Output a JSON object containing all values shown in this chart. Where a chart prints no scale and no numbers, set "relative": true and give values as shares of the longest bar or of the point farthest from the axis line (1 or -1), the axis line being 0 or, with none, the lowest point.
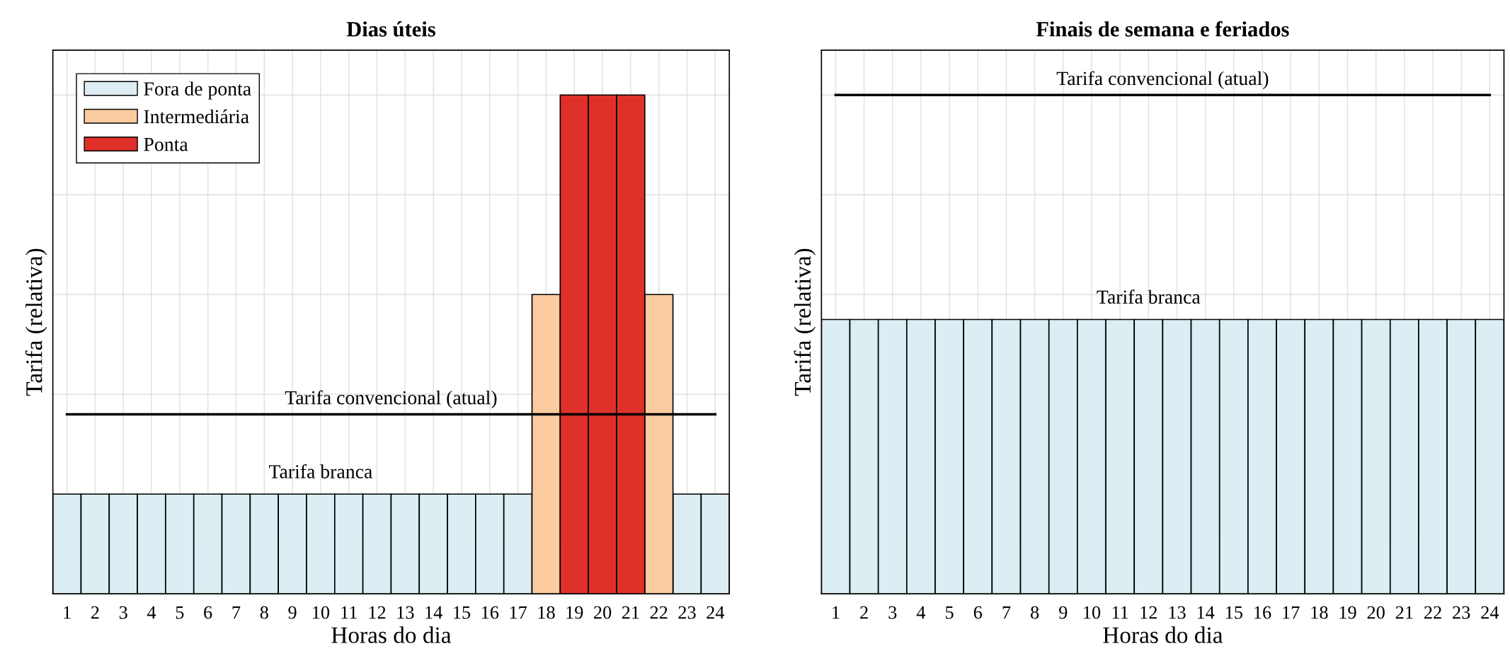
{
  "chart_data": [
    {
      "type": "bar",
      "title": "Dias úteis",
      "xlabel": "Horas do dia",
      "ylabel": "Tarifa (relativa)",
      "relative": true,
      "grid": true,
      "legend": "top left",
      "categories": [
        "1",
        "2",
        "3",
        "4",
        "5",
        "6",
        "7",
        "8",
        "9",
        "10",
        "11",
        "12",
        "13",
        "14",
        "15",
        "16",
        "17",
        "18",
        "19",
        "20",
        "21",
        "22",
        "23",
        "24"
      ],
      "series": [
        {
          "name": "Fora de ponta",
          "color": "#dcedf3",
          "values": [
            0.2,
            0.2,
            0.2,
            0.2,
            0.2,
            0.2,
            0.2,
            0.2,
            0.2,
            0.2,
            0.2,
            0.2,
            0.2,
            0.2,
            0.2,
            0.2,
            0.2,
            null,
            null,
            null,
            null,
            null,
            0.2,
            0.2
          ]
        },
        {
          "name": "Intermediária",
          "color": "#fbcba0",
          "values": [
            null,
            null,
            null,
            null,
            null,
            null,
            null,
            null,
            null,
            null,
            null,
            null,
            null,
            null,
            null,
            null,
            null,
            0.6,
            null,
            null,
            null,
            0.6,
            null,
            null
          ]
        },
        {
          "name": "Ponta",
          "color": "#e0302a",
          "values": [
            null,
            null,
            null,
            null,
            null,
            null,
            null,
            null,
            null,
            null,
            null,
            null,
            null,
            null,
            null,
            null,
            null,
            null,
            1,
            1,
            1,
            null,
            null,
            null
          ]
        },
        {
          "type": "line",
          "name": "Tarifa convencional (atual)",
          "color": "#000000",
          "values": [
            0.36,
            0.36,
            0.36,
            0.36,
            0.36,
            0.36,
            0.36,
            0.36,
            0.36,
            0.36,
            0.36,
            0.36,
            0.36,
            0.36,
            0.36,
            0.36,
            0.36,
            0.36,
            0.36,
            0.36,
            0.36,
            0.36,
            0.36,
            0.36
          ]
        }
      ],
      "annotations": [
        {
          "text": "Tarifa branca",
          "x": "10",
          "y": 0.2
        }
      ]
    },
    {
      "type": "bar",
      "title": "Finais de semana e feriados",
      "xlabel": "Horas do dia",
      "ylabel": "Tarifa (relativa)",
      "relative": true,
      "grid": true,
      "categories": [
        "1",
        "2",
        "3",
        "4",
        "5",
        "6",
        "7",
        "8",
        "9",
        "10",
        "11",
        "12",
        "13",
        "14",
        "15",
        "16",
        "17",
        "18",
        "19",
        "20",
        "21",
        "22",
        "23",
        "24"
      ],
      "series": [
        {
          "color": "#dcedf3",
          "values": [
            0.55,
            0.55,
            0.55,
            0.55,
            0.55,
            0.55,
            0.55,
            0.55,
            0.55,
            0.55,
            0.55,
            0.55,
            0.55,
            0.55,
            0.55,
            0.55,
            0.55,
            0.55,
            0.55,
            0.55,
            0.55,
            0.55,
            0.55,
            0.55
          ]
        },
        {
          "type": "line",
          "name": "Tarifa convencional (atual)",
          "color": "#000000",
          "values": [
            1,
            1,
            1,
            1,
            1,
            1,
            1,
            1,
            1,
            1,
            1,
            1,
            1,
            1,
            1,
            1,
            1,
            1,
            1,
            1,
            1,
            1,
            1,
            1
          ]
        }
      ],
      "annotations": [
        {
          "text": "Tarifa branca",
          "x": "12",
          "y": 0.55
        }
      ]
    }
  ]
}
